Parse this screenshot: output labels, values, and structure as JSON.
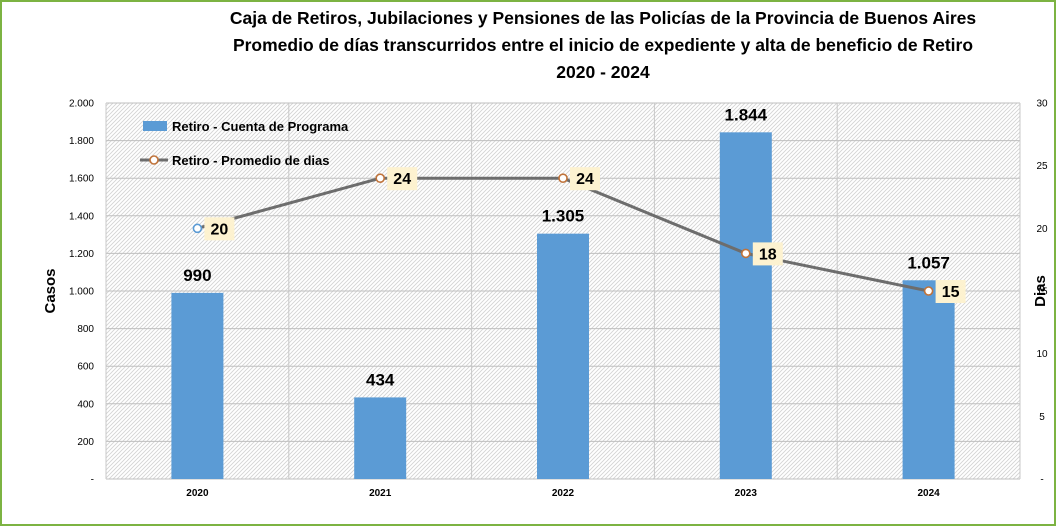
{
  "chart_data": {
    "type": "bar+line",
    "title_lines": [
      "Caja de Retiros, Jubilaciones y Pensiones de las Policías de la Provincia de Buenos Aires",
      "Promedio de días transcurridos  entre el inicio de expediente y alta de beneficio de Retiro",
      "2020 - 2024"
    ],
    "categories": [
      "2020",
      "2021",
      "2022",
      "2023",
      "2024"
    ],
    "series": [
      {
        "name": "Retiro - Cuenta de Programa",
        "type": "bar",
        "axis": "left",
        "values": [
          990,
          434,
          1305,
          1844,
          1057
        ],
        "labels": [
          "990",
          "434",
          "1.305",
          "1.844",
          "1.057"
        ],
        "color": "#5b9bd5"
      },
      {
        "name": "Retiro - Promedio de dias",
        "type": "line",
        "axis": "right",
        "values": [
          20,
          24,
          24,
          18,
          15
        ],
        "labels": [
          "20",
          "24",
          "24",
          "18",
          "15"
        ],
        "color": "#6d6d6d",
        "marker_color": "#c0733a"
      }
    ],
    "y_left": {
      "label": "Casos",
      "ylim": [
        0,
        2000
      ],
      "ticks": [
        0,
        200,
        400,
        600,
        800,
        1000,
        1200,
        1400,
        1600,
        1800,
        2000
      ],
      "tick_labels": [
        "-",
        "200",
        "400",
        "600",
        "800",
        "1.000",
        "1.200",
        "1.400",
        "1.600",
        "1.800",
        "2.000"
      ]
    },
    "y_right": {
      "label": "Dias",
      "ylim": [
        0,
        30
      ],
      "ticks": [
        0,
        5,
        10,
        15,
        20,
        25,
        30
      ],
      "tick_labels": [
        "-",
        "5",
        "10",
        "15",
        "20",
        "25",
        "30"
      ]
    },
    "grid": true,
    "legend_position": "top-left",
    "background_pattern": "diagonal-hatch",
    "frame_color": "#7cb342"
  }
}
